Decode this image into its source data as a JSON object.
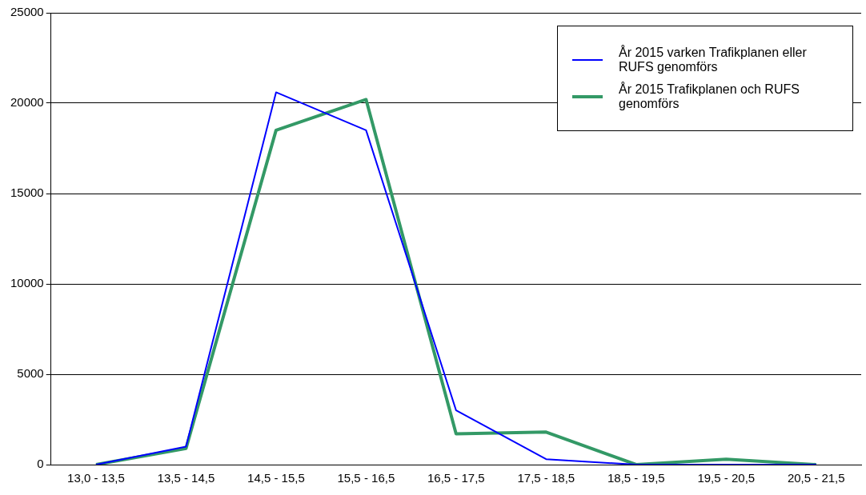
{
  "chart_data": {
    "type": "line",
    "categories": [
      "13,0 - 13,5",
      "13,5 - 14,5",
      "14,5 - 15,5",
      "15,5 - 16,5",
      "16,5 - 17,5",
      "17,5 - 18,5",
      "18,5 - 19,5",
      "19,5 - 20,5",
      "20,5 - 21,5"
    ],
    "series": [
      {
        "name": "År 2015 varken Trafikplanen eller RUFS genomförs",
        "color": "#0000ff",
        "values": [
          0,
          1000,
          20600,
          18500,
          3000,
          300,
          0,
          0,
          0
        ]
      },
      {
        "name": "År 2015 Trafikplanen och RUFS genomförs",
        "color": "#339966",
        "values": [
          0,
          900,
          18500,
          20200,
          1700,
          1800,
          0,
          300,
          0
        ]
      }
    ],
    "ylim": [
      0,
      25000
    ],
    "yticks": [
      0,
      5000,
      10000,
      15000,
      20000,
      25000
    ],
    "grid": "y",
    "legend": "top right",
    "marker": "none",
    "line_style": "solid"
  }
}
